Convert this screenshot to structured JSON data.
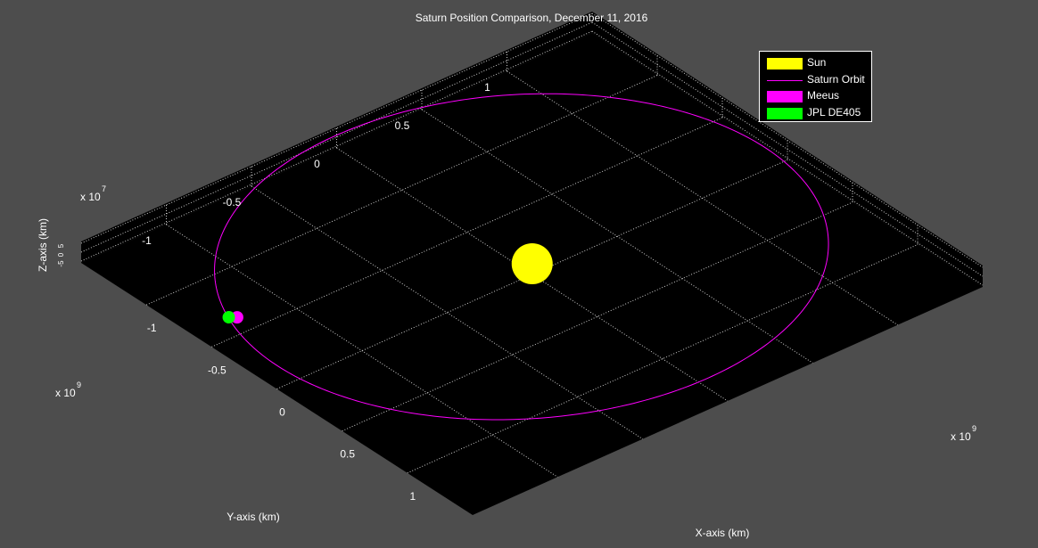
{
  "chart_data": {
    "type": "scatter3d",
    "title": "Saturn Position Comparison, December 11, 2016",
    "xlabel": "X-axis (km)",
    "ylabel": "Y-axis (km)",
    "zlabel": "Z-axis (km)",
    "x_exponent_label": "x 10",
    "x_exponent_power": "9",
    "y_exponent_label": "x 10",
    "y_exponent_power": "9",
    "z_exponent_label": "x 10",
    "z_exponent_power": "7",
    "x_ticks": [
      -1,
      -0.5,
      0,
      0.5,
      1
    ],
    "y_ticks": [
      -1,
      -0.5,
      0,
      0.5,
      1
    ],
    "z_ticks": [
      -5,
      0,
      5
    ],
    "x_tick_labels": [
      "-1",
      "-0.5",
      "0",
      "0.5",
      "1"
    ],
    "y_tick_labels": [
      "-1",
      "-0.5",
      "0",
      "0.5",
      "1"
    ],
    "z_tick_labels": [
      "-5",
      "0",
      "5"
    ],
    "xlim": [
      -1.5,
      1.5
    ],
    "ylim": [
      -1.5,
      1.5
    ],
    "zlim": [
      -6,
      6
    ],
    "grid": true,
    "legend_position": "top-right",
    "legend": [
      {
        "name": "Sun",
        "kind": "marker",
        "color": "#ffff00"
      },
      {
        "name": "Saturn Orbit",
        "kind": "line",
        "color": "#ff00ff"
      },
      {
        "name": "Meeus",
        "kind": "marker",
        "color": "#ff00ff"
      },
      {
        "name": "JPL DE405",
        "kind": "marker",
        "color": "#00ff00"
      }
    ],
    "series": [
      {
        "name": "Sun",
        "type": "marker",
        "color": "#ffff00",
        "points": [
          [
            0,
            0,
            0
          ]
        ]
      },
      {
        "name": "Saturn Orbit",
        "type": "line",
        "color": "#ff00ff",
        "semi_major_axis": 1.4335,
        "eccentricity": 0.0565
      },
      {
        "name": "Meeus",
        "type": "marker",
        "color": "#ff00ff",
        "points": [
          [
            -0.56,
            -1.32,
            0.05
          ]
        ]
      },
      {
        "name": "JPL DE405",
        "type": "marker",
        "color": "#00ff00",
        "points": [
          [
            -0.57,
            -1.33,
            0.05
          ]
        ]
      }
    ]
  },
  "colors": {
    "figure_background": "#4d4d4d",
    "axes_background": "#000000",
    "grid": "#ffffff",
    "text": "#ffffff"
  }
}
